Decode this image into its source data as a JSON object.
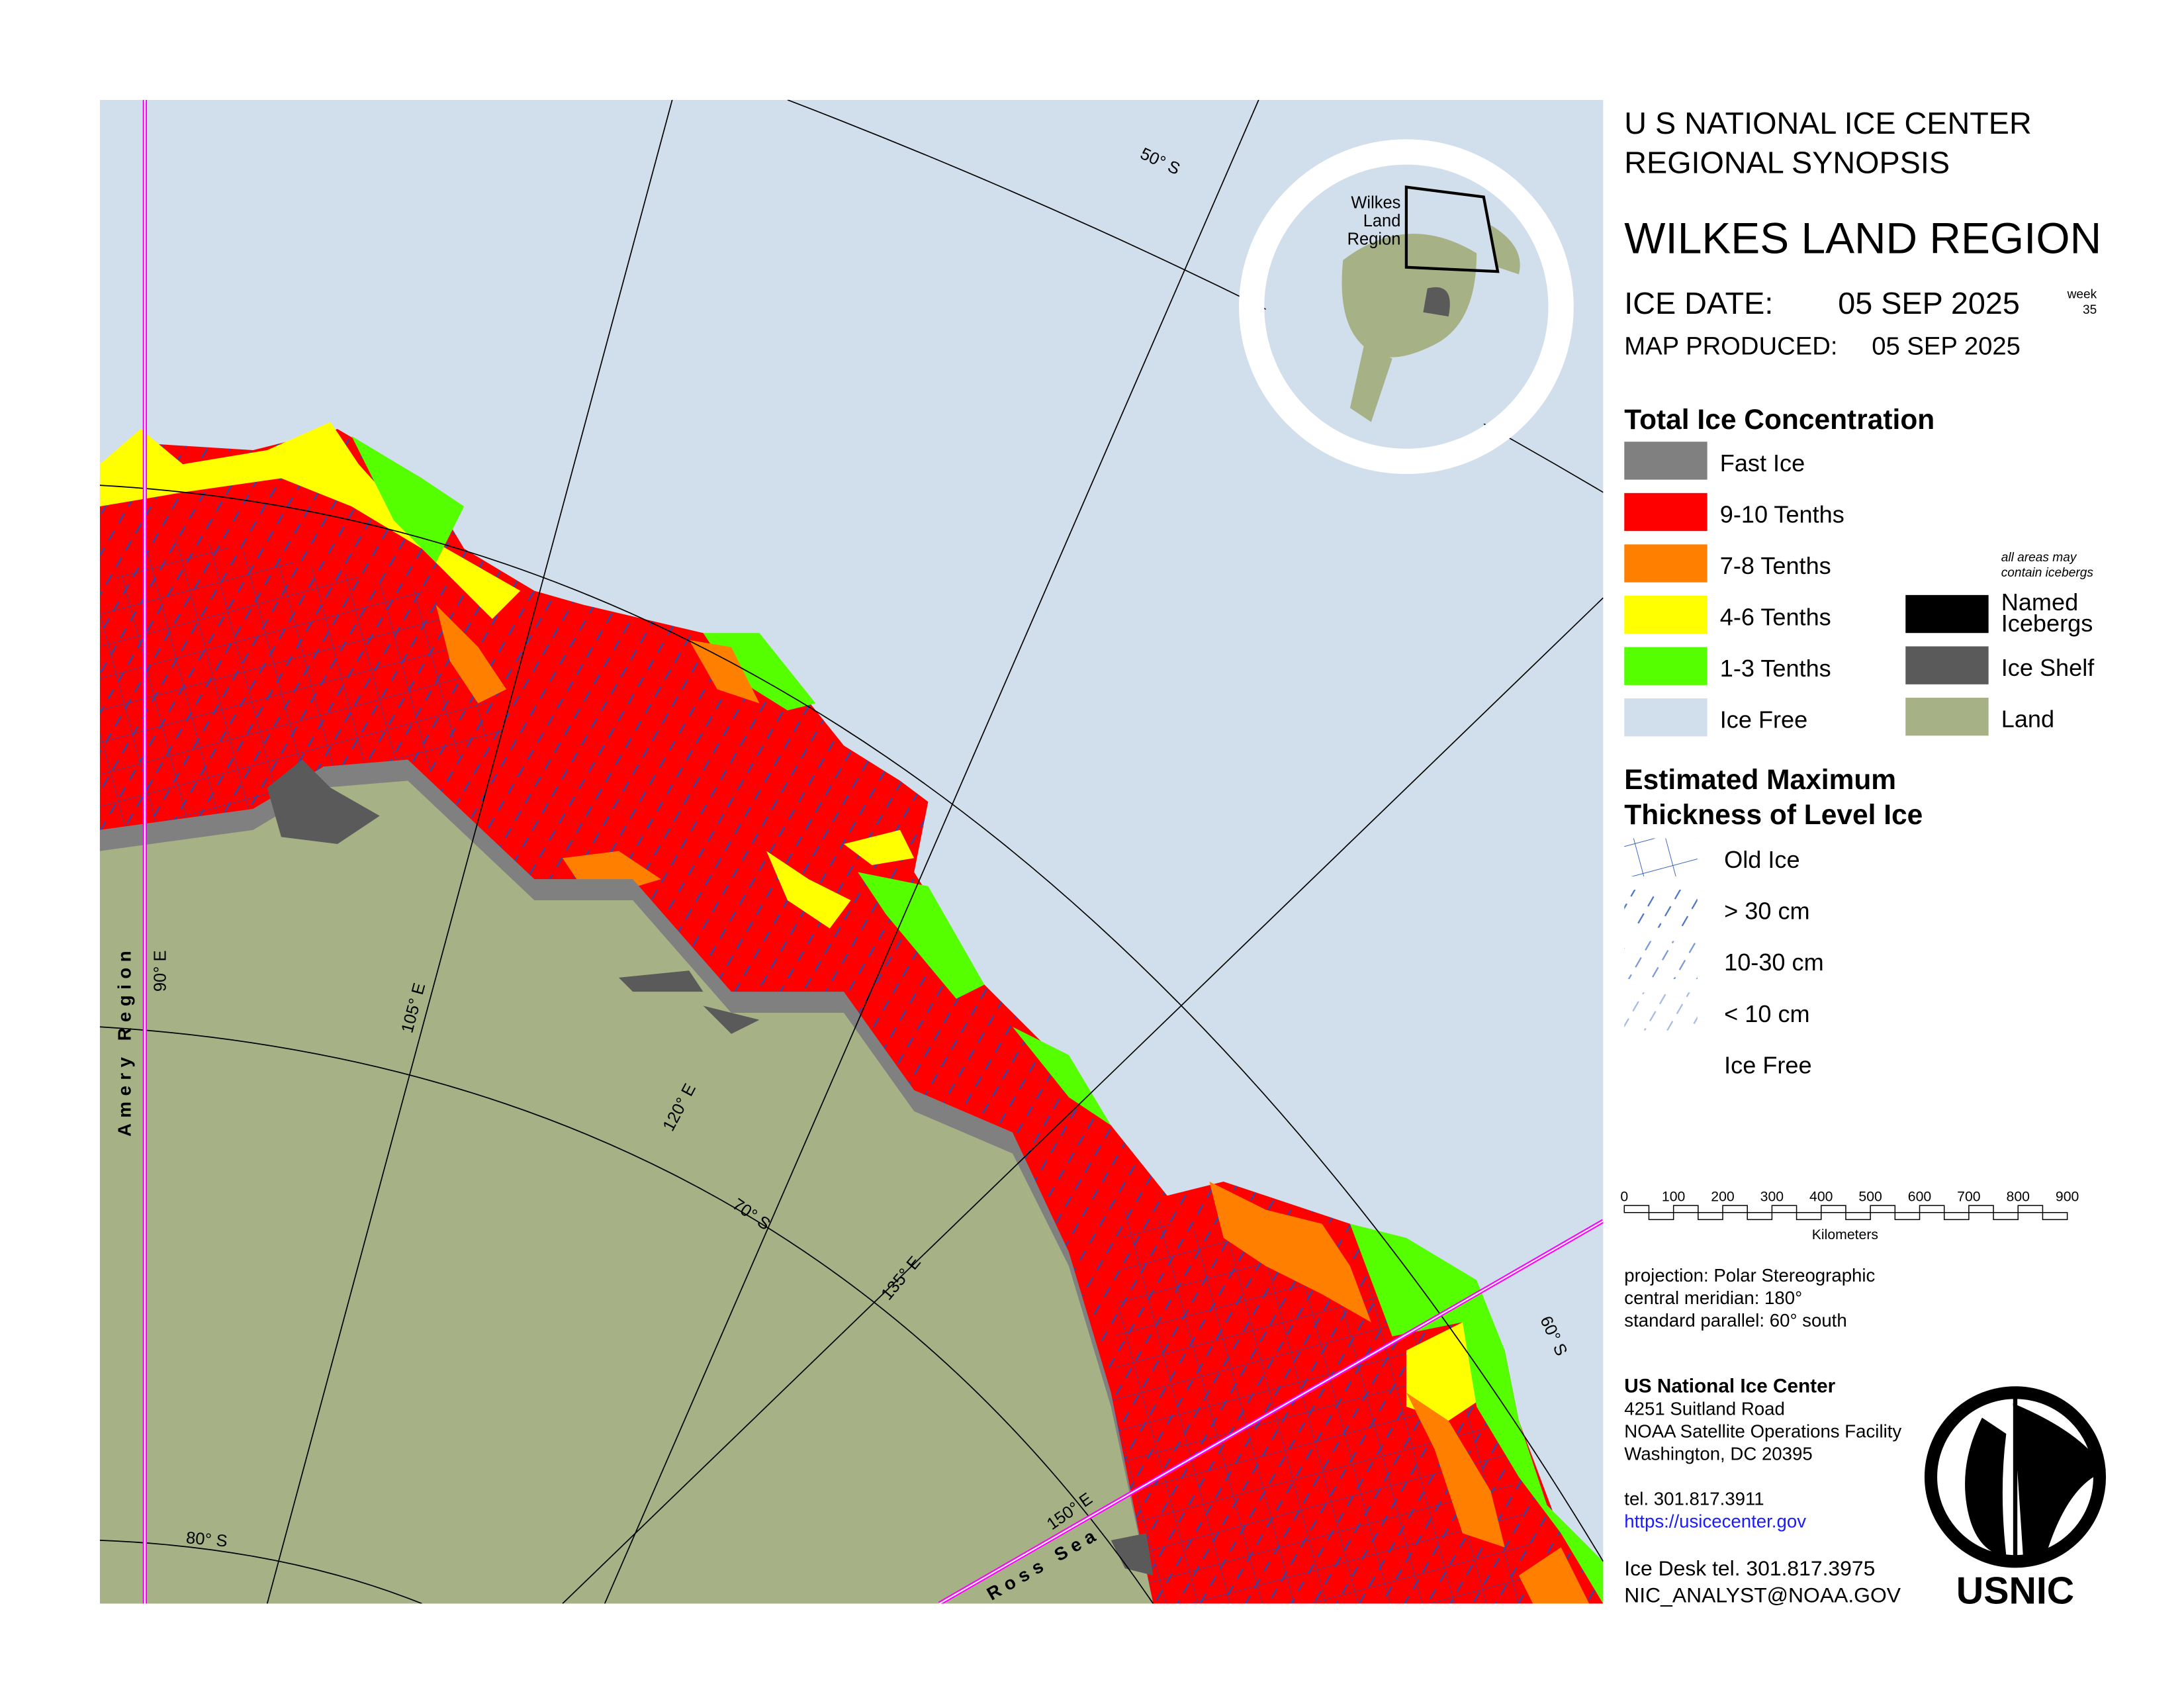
{
  "header": {
    "agency": "U S NATIONAL ICE CENTER",
    "product": "REGIONAL SYNOPSIS",
    "region": "WILKES LAND REGION",
    "ice_date_label": "ICE DATE:",
    "ice_date": "05 SEP 2025",
    "week_label": "week",
    "week": "35",
    "produced_label": "MAP PRODUCED:",
    "produced": "05 SEP 2025"
  },
  "concentration_legend": {
    "title": "Total Ice Concentration",
    "items": [
      {
        "label": "Fast Ice",
        "color": "#808080"
      },
      {
        "label": "9-10 Tenths",
        "color": "#ff0000"
      },
      {
        "label": "7-8 Tenths",
        "color": "#ff8000"
      },
      {
        "label": "4-6 Tenths",
        "color": "#ffff00"
      },
      {
        "label": "1-3 Tenths",
        "color": "#55ff00"
      },
      {
        "label": "Ice Free",
        "color": "#d0dfeb"
      }
    ],
    "note": [
      "all areas may",
      "contain icebergs"
    ],
    "other_items": [
      {
        "lines": [
          "Named",
          "Icebergs"
        ],
        "color": "#000000"
      },
      {
        "lines": [
          "Ice Shelf"
        ],
        "color": "#5a5a5a"
      },
      {
        "lines": [
          "Land"
        ],
        "color": "#a6b185"
      }
    ]
  },
  "thickness_legend": {
    "title": [
      "Estimated Maximum",
      "Thickness of Level Ice"
    ],
    "items": [
      "Old Ice",
      "> 30 cm",
      "10-30 cm",
      "< 10 cm",
      "Ice Free"
    ]
  },
  "scale_bar": {
    "ticks": [
      "0",
      "100",
      "200",
      "300",
      "400",
      "500",
      "600",
      "700",
      "800",
      "900"
    ],
    "unit": "Kilometers"
  },
  "projection": [
    "projection: Polar Stereographic",
    "central meridian: 180°",
    "standard parallel:  60° south"
  ],
  "contact": {
    "name": "US National Ice Center",
    "address": [
      "4251 Suitland Road",
      "NOAA Satellite Operations Facility",
      "Washington, DC  20395"
    ],
    "tel": "tel. 301.817.3911",
    "url": "https://usicecenter.gov",
    "desk_tel": "Ice Desk tel. 301.817.3975",
    "email": "NIC_ANALYST@NOAA.GOV"
  },
  "logo": "USNIC",
  "map_labels": {
    "parallels": [
      "50° S",
      "60° S",
      "70° S",
      "80° S"
    ],
    "meridians": [
      "90° E",
      "105° E",
      "120° E",
      "135° E",
      "150° E"
    ],
    "regions": [
      "Amery Region",
      "Ross Sea"
    ]
  },
  "inset": {
    "label": [
      "Wilkes",
      "Land",
      "Region"
    ]
  }
}
